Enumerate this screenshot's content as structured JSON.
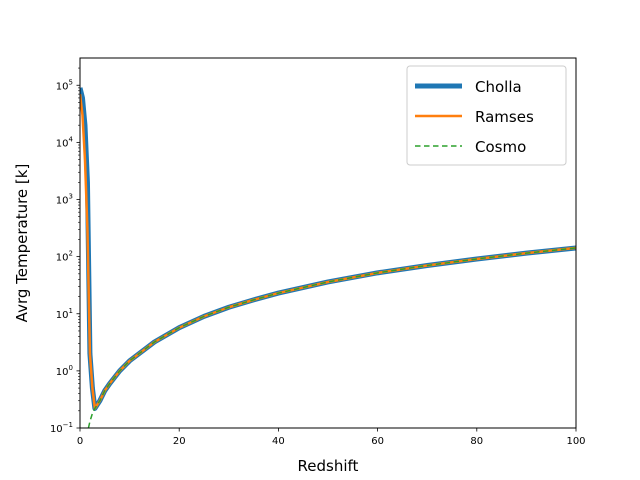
{
  "chart_data": {
    "type": "line",
    "title": "",
    "xlabel": "Redshift",
    "ylabel": "Avrg Temperature [k]",
    "xlim": [
      0,
      100
    ],
    "ylim": [
      0.1,
      300000
    ],
    "yscale": "log",
    "grid": false,
    "legend_position": "top-right",
    "x_ticks": [
      0,
      20,
      40,
      60,
      80,
      100
    ],
    "x_tick_labels": [
      "0",
      "20",
      "40",
      "60",
      "80",
      "100"
    ],
    "y_ticks": [
      0.1,
      1,
      10,
      100,
      1000,
      10000,
      100000
    ],
    "y_tick_labels": [
      {
        "base": "10",
        "exp": "−1"
      },
      {
        "base": "10",
        "exp": "0"
      },
      {
        "base": "10",
        "exp": "1"
      },
      {
        "base": "10",
        "exp": "2"
      },
      {
        "base": "10",
        "exp": "3"
      },
      {
        "base": "10",
        "exp": "4"
      },
      {
        "base": "10",
        "exp": "5"
      }
    ],
    "series": [
      {
        "name": "Cholla",
        "color": "#1f77b4",
        "style": "solid-thick",
        "x": [
          0,
          0.5,
          1,
          1.5,
          2,
          2.5,
          3,
          4,
          5,
          6,
          8,
          10,
          15,
          20,
          25,
          30,
          35,
          40,
          50,
          60,
          70,
          80,
          90,
          100
        ],
        "y": [
          90000,
          60000,
          20000,
          2000,
          2,
          0.5,
          0.22,
          0.3,
          0.45,
          0.6,
          1.0,
          1.5,
          3.2,
          5.7,
          9,
          13,
          17.5,
          23,
          36,
          52,
          70,
          91,
          115,
          142
        ]
      },
      {
        "name": "Ramses",
        "color": "#ff7f0e",
        "style": "solid",
        "x": [
          0,
          0.5,
          1,
          1.5,
          2,
          2.5,
          3,
          4,
          5,
          6,
          8,
          10,
          15,
          20,
          25,
          30,
          35,
          40,
          50,
          60,
          70,
          80,
          90,
          100
        ],
        "y": [
          70000,
          30000,
          5000,
          300,
          2,
          0.5,
          0.22,
          0.3,
          0.45,
          0.6,
          1.0,
          1.5,
          3.2,
          5.7,
          9,
          13,
          17.5,
          23,
          36,
          52,
          70,
          91,
          115,
          142
        ]
      },
      {
        "name": "Cosmo",
        "color": "#2ca02c",
        "style": "dashed",
        "x": [
          1.7,
          2,
          2.5,
          3,
          4,
          5,
          6,
          8,
          10,
          15,
          20,
          25,
          30,
          35,
          40,
          50,
          60,
          70,
          80,
          90,
          100
        ],
        "y": [
          0.1,
          0.13,
          0.18,
          0.22,
          0.3,
          0.45,
          0.6,
          1.0,
          1.5,
          3.2,
          5.7,
          9,
          13,
          17.5,
          23,
          36,
          52,
          70,
          91,
          115,
          142
        ]
      }
    ]
  }
}
